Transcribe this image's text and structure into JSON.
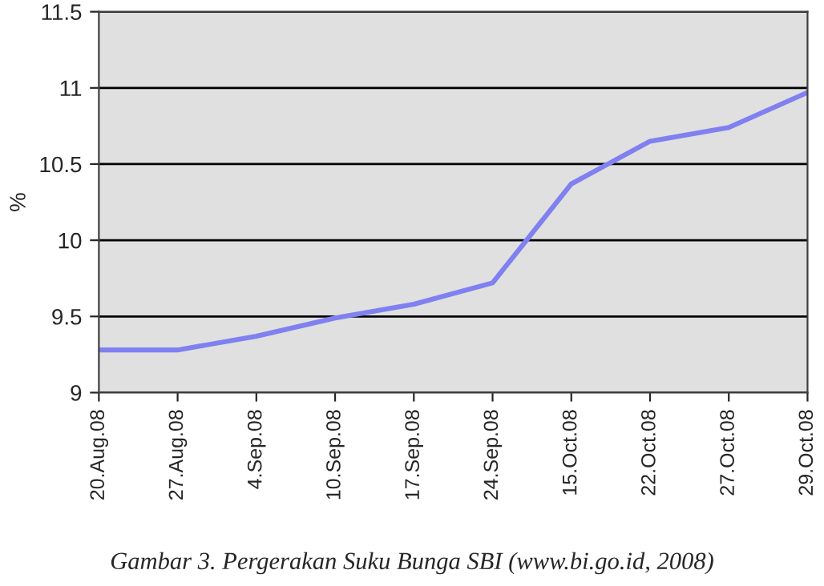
{
  "chart_data": {
    "type": "line",
    "ylabel": "%",
    "categories": [
      "20.Aug.08",
      "27.Aug.08",
      "4.Sep.08",
      "10.Sep.08",
      "17.Sep.08",
      "24.Sep.08",
      "15.Oct.08",
      "22.Oct.08",
      "27.Oct.08",
      "29.Oct.08"
    ],
    "series": [
      {
        "color": "#8080f0",
        "values": [
          9.28,
          9.28,
          9.37,
          9.49,
          9.58,
          9.72,
          10.37,
          10.65,
          10.74,
          10.97
        ]
      }
    ],
    "ylim": [
      9,
      11.5
    ],
    "yticks": [
      9,
      9.5,
      10,
      10.5,
      11,
      11.5
    ],
    "grid": "y",
    "legend": false,
    "marker": "none",
    "line_style": "solid",
    "annotations": [
      "Gambar 3. Pergerakan Suku Bunga SBI (www.bi.go.id, 2008)"
    ]
  }
}
